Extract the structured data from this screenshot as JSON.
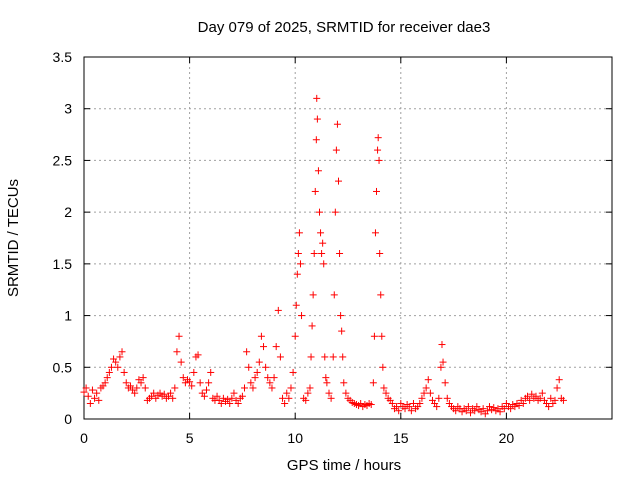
{
  "chart_data": {
    "type": "scatter",
    "title": "Day 079 of 2025, SRMTID for receiver dae3",
    "xlabel": "GPS time / hours",
    "ylabel": "SRMTID / TECUs",
    "xlim": [
      0,
      25
    ],
    "ylim": [
      0,
      3.5
    ],
    "xticks": [
      0,
      5,
      10,
      15,
      20
    ],
    "yticks": [
      0,
      0.5,
      1,
      1.5,
      2,
      2.5,
      3,
      3.5
    ],
    "xtick_labels": [
      "0",
      "5",
      "10",
      "15",
      "20"
    ],
    "ytick_labels": [
      "0",
      "0.5",
      "1",
      "1.5",
      "2",
      "2.5",
      "3",
      "3.5"
    ],
    "grid": true,
    "marker": "plus",
    "marker_color": "#ff0000",
    "series": [
      {
        "name": "SRMTID",
        "points": [
          [
            0.0,
            0.26
          ],
          [
            0.1,
            0.3
          ],
          [
            0.2,
            0.22
          ],
          [
            0.3,
            0.15
          ],
          [
            0.4,
            0.28
          ],
          [
            0.5,
            0.2
          ],
          [
            0.6,
            0.25
          ],
          [
            0.7,
            0.18
          ],
          [
            0.8,
            0.3
          ],
          [
            0.9,
            0.32
          ],
          [
            1.0,
            0.35
          ],
          [
            1.1,
            0.4
          ],
          [
            1.2,
            0.45
          ],
          [
            1.3,
            0.5
          ],
          [
            1.4,
            0.58
          ],
          [
            1.5,
            0.55
          ],
          [
            1.6,
            0.5
          ],
          [
            1.7,
            0.6
          ],
          [
            1.8,
            0.65
          ],
          [
            1.9,
            0.45
          ],
          [
            2.0,
            0.35
          ],
          [
            2.1,
            0.3
          ],
          [
            2.2,
            0.32
          ],
          [
            2.3,
            0.28
          ],
          [
            2.4,
            0.25
          ],
          [
            2.5,
            0.3
          ],
          [
            2.6,
            0.38
          ],
          [
            2.7,
            0.35
          ],
          [
            2.8,
            0.4
          ],
          [
            2.9,
            0.3
          ],
          [
            3.0,
            0.18
          ],
          [
            3.1,
            0.2
          ],
          [
            3.2,
            0.22
          ],
          [
            3.3,
            0.25
          ],
          [
            3.4,
            0.2
          ],
          [
            3.5,
            0.23
          ],
          [
            3.6,
            0.25
          ],
          [
            3.7,
            0.22
          ],
          [
            3.8,
            0.24
          ],
          [
            3.9,
            0.2
          ],
          [
            4.0,
            0.22
          ],
          [
            4.1,
            0.25
          ],
          [
            4.2,
            0.2
          ],
          [
            4.3,
            0.3
          ],
          [
            4.4,
            0.65
          ],
          [
            4.5,
            0.8
          ],
          [
            4.6,
            0.55
          ],
          [
            4.7,
            0.4
          ],
          [
            4.8,
            0.35
          ],
          [
            4.9,
            0.38
          ],
          [
            5.0,
            0.36
          ],
          [
            5.1,
            0.32
          ],
          [
            5.2,
            0.45
          ],
          [
            5.3,
            0.6
          ],
          [
            5.4,
            0.62
          ],
          [
            5.5,
            0.35
          ],
          [
            5.6,
            0.25
          ],
          [
            5.7,
            0.22
          ],
          [
            5.8,
            0.28
          ],
          [
            5.9,
            0.35
          ],
          [
            6.0,
            0.45
          ],
          [
            6.1,
            0.2
          ],
          [
            6.2,
            0.18
          ],
          [
            6.3,
            0.22
          ],
          [
            6.4,
            0.18
          ],
          [
            6.5,
            0.15
          ],
          [
            6.6,
            0.2
          ],
          [
            6.7,
            0.17
          ],
          [
            6.8,
            0.19
          ],
          [
            6.9,
            0.15
          ],
          [
            7.0,
            0.2
          ],
          [
            7.1,
            0.25
          ],
          [
            7.2,
            0.18
          ],
          [
            7.3,
            0.15
          ],
          [
            7.4,
            0.2
          ],
          [
            7.5,
            0.22
          ],
          [
            7.6,
            0.3
          ],
          [
            7.7,
            0.65
          ],
          [
            7.8,
            0.5
          ],
          [
            7.9,
            0.35
          ],
          [
            8.0,
            0.3
          ],
          [
            8.1,
            0.4
          ],
          [
            8.2,
            0.45
          ],
          [
            8.3,
            0.55
          ],
          [
            8.4,
            0.8
          ],
          [
            8.5,
            0.7
          ],
          [
            8.6,
            0.5
          ],
          [
            8.7,
            0.4
          ],
          [
            8.8,
            0.35
          ],
          [
            8.9,
            0.3
          ],
          [
            9.0,
            0.4
          ],
          [
            9.1,
            0.7
          ],
          [
            9.2,
            1.05
          ],
          [
            9.3,
            0.6
          ],
          [
            9.4,
            0.2
          ],
          [
            9.5,
            0.15
          ],
          [
            9.6,
            0.25
          ],
          [
            9.7,
            0.2
          ],
          [
            9.8,
            0.3
          ],
          [
            9.9,
            0.45
          ],
          [
            10.0,
            0.8
          ],
          [
            10.05,
            1.1
          ],
          [
            10.1,
            1.4
          ],
          [
            10.15,
            1.6
          ],
          [
            10.2,
            1.8
          ],
          [
            10.25,
            1.5
          ],
          [
            10.3,
            1.0
          ],
          [
            10.4,
            0.2
          ],
          [
            10.5,
            0.18
          ],
          [
            10.6,
            0.25
          ],
          [
            10.7,
            0.3
          ],
          [
            10.75,
            0.6
          ],
          [
            10.8,
            0.9
          ],
          [
            10.85,
            1.2
          ],
          [
            10.9,
            1.6
          ],
          [
            10.95,
            2.2
          ],
          [
            11.0,
            2.7
          ],
          [
            11.02,
            3.1
          ],
          [
            11.05,
            2.9
          ],
          [
            11.1,
            2.4
          ],
          [
            11.15,
            2.0
          ],
          [
            11.2,
            1.8
          ],
          [
            11.25,
            1.6
          ],
          [
            11.3,
            1.7
          ],
          [
            11.35,
            1.5
          ],
          [
            11.4,
            0.6
          ],
          [
            11.45,
            0.4
          ],
          [
            11.5,
            0.35
          ],
          [
            11.6,
            0.25
          ],
          [
            11.7,
            0.2
          ],
          [
            11.8,
            0.6
          ],
          [
            11.85,
            1.2
          ],
          [
            11.9,
            2.0
          ],
          [
            11.95,
            2.6
          ],
          [
            12.0,
            2.85
          ],
          [
            12.05,
            2.3
          ],
          [
            12.1,
            1.6
          ],
          [
            12.15,
            1.0
          ],
          [
            12.2,
            0.85
          ],
          [
            12.25,
            0.6
          ],
          [
            12.3,
            0.35
          ],
          [
            12.4,
            0.25
          ],
          [
            12.5,
            0.2
          ],
          [
            12.6,
            0.18
          ],
          [
            12.7,
            0.16
          ],
          [
            12.8,
            0.15
          ],
          [
            12.9,
            0.14
          ],
          [
            13.0,
            0.13
          ],
          [
            13.1,
            0.15
          ],
          [
            13.2,
            0.12
          ],
          [
            13.3,
            0.14
          ],
          [
            13.4,
            0.13
          ],
          [
            13.5,
            0.15
          ],
          [
            13.6,
            0.14
          ],
          [
            13.7,
            0.35
          ],
          [
            13.75,
            0.8
          ],
          [
            13.8,
            1.8
          ],
          [
            13.85,
            2.2
          ],
          [
            13.9,
            2.6
          ],
          [
            13.93,
            2.72
          ],
          [
            13.97,
            2.5
          ],
          [
            14.0,
            1.6
          ],
          [
            14.05,
            1.2
          ],
          [
            14.1,
            0.8
          ],
          [
            14.15,
            0.5
          ],
          [
            14.2,
            0.3
          ],
          [
            14.3,
            0.25
          ],
          [
            14.4,
            0.2
          ],
          [
            14.5,
            0.18
          ],
          [
            14.6,
            0.15
          ],
          [
            14.7,
            0.1
          ],
          [
            14.8,
            0.12
          ],
          [
            14.9,
            0.08
          ],
          [
            15.0,
            0.15
          ],
          [
            15.1,
            0.12
          ],
          [
            15.2,
            0.1
          ],
          [
            15.3,
            0.14
          ],
          [
            15.4,
            0.12
          ],
          [
            15.5,
            0.08
          ],
          [
            15.6,
            0.15
          ],
          [
            15.7,
            0.1
          ],
          [
            15.8,
            0.12
          ],
          [
            15.9,
            0.15
          ],
          [
            16.0,
            0.2
          ],
          [
            16.1,
            0.25
          ],
          [
            16.2,
            0.3
          ],
          [
            16.3,
            0.38
          ],
          [
            16.4,
            0.25
          ],
          [
            16.5,
            0.18
          ],
          [
            16.6,
            0.15
          ],
          [
            16.7,
            0.12
          ],
          [
            16.8,
            0.2
          ],
          [
            16.9,
            0.5
          ],
          [
            16.95,
            0.72
          ],
          [
            17.0,
            0.55
          ],
          [
            17.1,
            0.35
          ],
          [
            17.2,
            0.2
          ],
          [
            17.3,
            0.15
          ],
          [
            17.4,
            0.12
          ],
          [
            17.5,
            0.1
          ],
          [
            17.6,
            0.08
          ],
          [
            17.7,
            0.12
          ],
          [
            17.8,
            0.1
          ],
          [
            17.9,
            0.07
          ],
          [
            18.0,
            0.1
          ],
          [
            18.1,
            0.08
          ],
          [
            18.2,
            0.12
          ],
          [
            18.3,
            0.06
          ],
          [
            18.4,
            0.1
          ],
          [
            18.5,
            0.08
          ],
          [
            18.6,
            0.12
          ],
          [
            18.7,
            0.09
          ],
          [
            18.8,
            0.07
          ],
          [
            18.9,
            0.1
          ],
          [
            19.0,
            0.05
          ],
          [
            19.1,
            0.08
          ],
          [
            19.2,
            0.12
          ],
          [
            19.3,
            0.09
          ],
          [
            19.4,
            0.11
          ],
          [
            19.5,
            0.08
          ],
          [
            19.6,
            0.1
          ],
          [
            19.7,
            0.07
          ],
          [
            19.8,
            0.12
          ],
          [
            19.9,
            0.1
          ],
          [
            20.0,
            0.15
          ],
          [
            20.1,
            0.12
          ],
          [
            20.2,
            0.1
          ],
          [
            20.3,
            0.14
          ],
          [
            20.4,
            0.12
          ],
          [
            20.5,
            0.15
          ],
          [
            20.6,
            0.13
          ],
          [
            20.7,
            0.18
          ],
          [
            20.8,
            0.15
          ],
          [
            20.9,
            0.2
          ],
          [
            21.0,
            0.22
          ],
          [
            21.1,
            0.18
          ],
          [
            21.2,
            0.24
          ],
          [
            21.3,
            0.2
          ],
          [
            21.4,
            0.22
          ],
          [
            21.5,
            0.18
          ],
          [
            21.6,
            0.2
          ],
          [
            21.7,
            0.25
          ],
          [
            21.8,
            0.18
          ],
          [
            21.9,
            0.15
          ],
          [
            22.0,
            0.12
          ],
          [
            22.1,
            0.2
          ],
          [
            22.2,
            0.15
          ],
          [
            22.3,
            0.18
          ],
          [
            22.4,
            0.3
          ],
          [
            22.5,
            0.38
          ],
          [
            22.6,
            0.2
          ],
          [
            22.7,
            0.18
          ]
        ]
      }
    ]
  }
}
